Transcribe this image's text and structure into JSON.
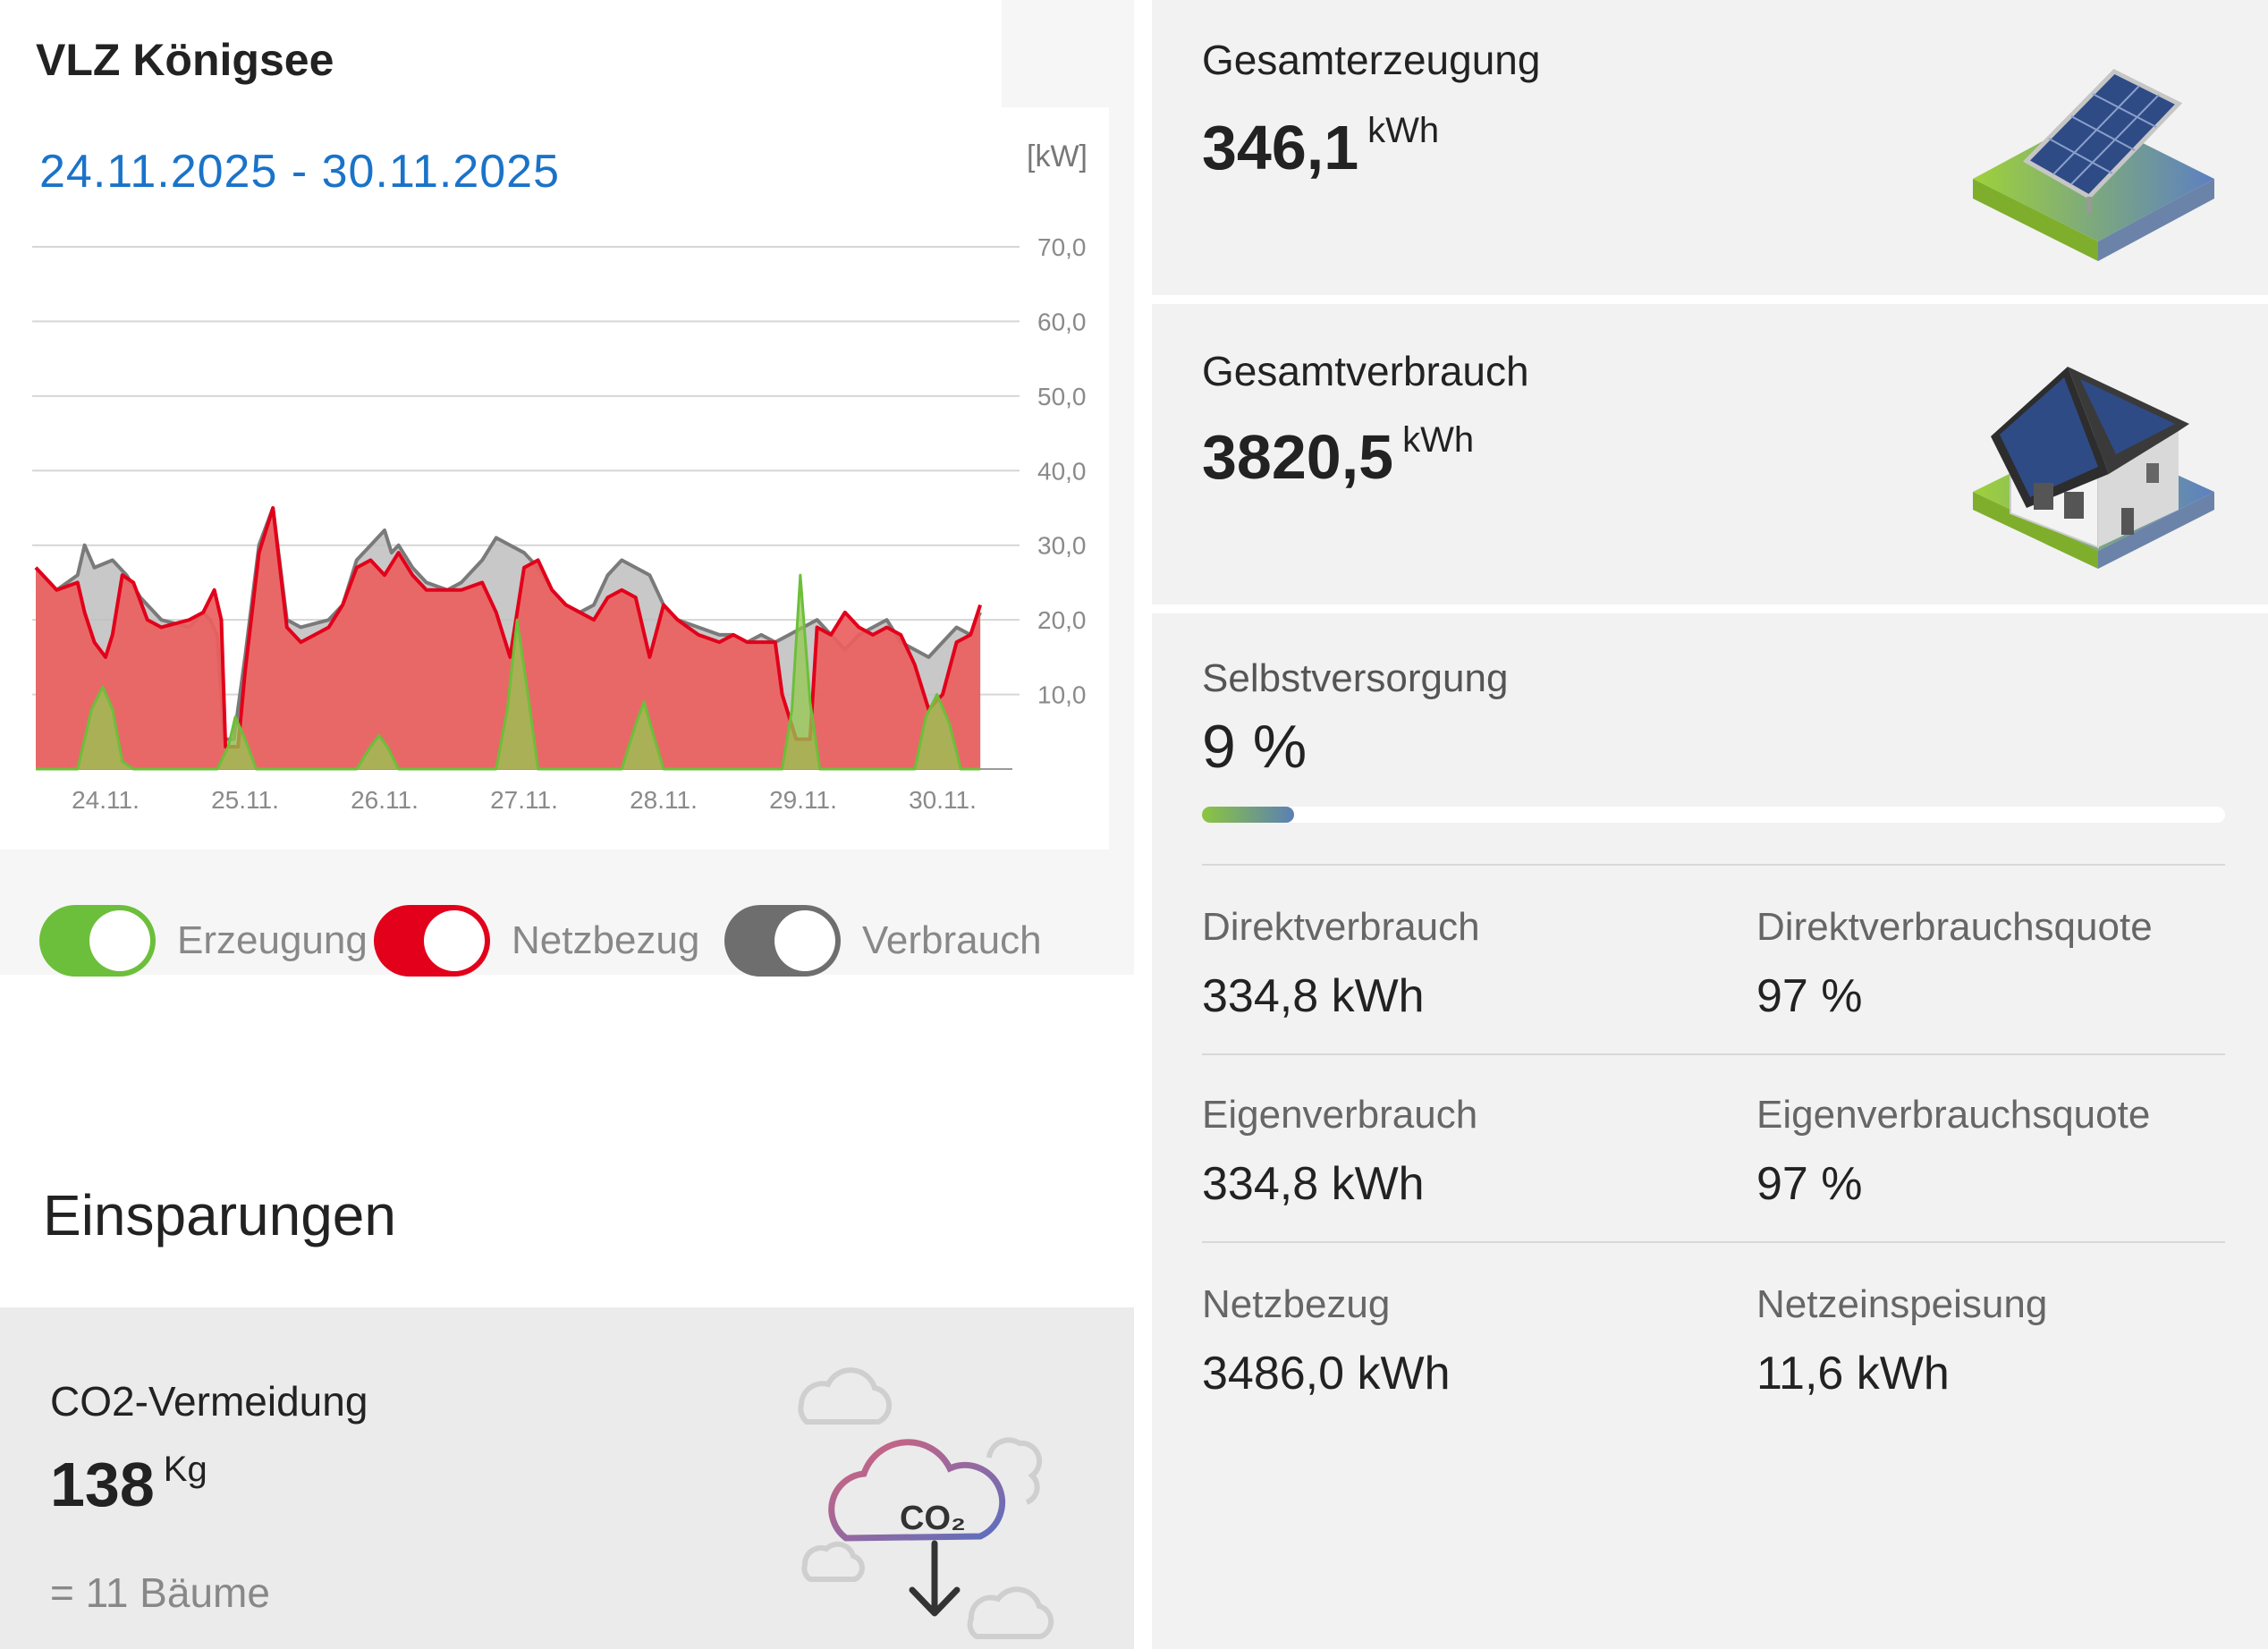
{
  "header": {
    "title": "VLZ Königsee",
    "date_range": "24.11.2025 - 30.11.2025",
    "unit": "[kW]"
  },
  "chart_data": {
    "type": "area",
    "title": "",
    "ylabel": "[kW]",
    "ylim": [
      0,
      70
    ],
    "y_ticks": [
      "70,0",
      "60,0",
      "50,0",
      "40,0",
      "30,0",
      "20,0",
      "10,0"
    ],
    "y_tick_values": [
      70,
      60,
      50,
      40,
      30,
      20,
      10
    ],
    "x_tick_labels": [
      "24.11.",
      "25.11.",
      "26.11.",
      "27.11.",
      "28.11.",
      "29.11.",
      "30.11."
    ],
    "x_range": [
      0,
      7
    ],
    "series": [
      {
        "name": "Verbrauch",
        "color": "#7a7a7a",
        "points": [
          [
            0,
            27
          ],
          [
            0.15,
            24
          ],
          [
            0.3,
            26
          ],
          [
            0.35,
            30
          ],
          [
            0.42,
            27
          ],
          [
            0.55,
            28
          ],
          [
            0.65,
            26
          ],
          [
            0.75,
            23
          ],
          [
            0.9,
            20
          ],
          [
            1.1,
            19
          ],
          [
            1.2,
            21
          ],
          [
            1.25,
            20
          ],
          [
            1.3,
            18
          ],
          [
            1.35,
            4
          ],
          [
            1.42,
            4
          ],
          [
            1.5,
            15
          ],
          [
            1.6,
            30
          ],
          [
            1.7,
            35
          ],
          [
            1.8,
            20
          ],
          [
            1.9,
            19
          ],
          [
            2.1,
            20
          ],
          [
            2.2,
            22
          ],
          [
            2.3,
            28
          ],
          [
            2.4,
            30
          ],
          [
            2.5,
            32
          ],
          [
            2.55,
            29
          ],
          [
            2.6,
            30
          ],
          [
            2.7,
            27
          ],
          [
            2.8,
            25
          ],
          [
            2.95,
            24
          ],
          [
            3.05,
            25
          ],
          [
            3.2,
            28
          ],
          [
            3.3,
            31
          ],
          [
            3.4,
            30
          ],
          [
            3.5,
            29
          ],
          [
            3.6,
            27
          ],
          [
            3.7,
            24
          ],
          [
            3.8,
            22
          ],
          [
            3.9,
            21
          ],
          [
            4.0,
            22
          ],
          [
            4.1,
            26
          ],
          [
            4.2,
            28
          ],
          [
            4.3,
            27
          ],
          [
            4.4,
            26
          ],
          [
            4.5,
            22
          ],
          [
            4.6,
            20
          ],
          [
            4.75,
            19
          ],
          [
            4.9,
            18
          ],
          [
            5.0,
            18
          ],
          [
            5.1,
            17
          ],
          [
            5.2,
            18
          ],
          [
            5.3,
            17
          ],
          [
            5.4,
            18
          ],
          [
            5.5,
            19
          ],
          [
            5.6,
            20
          ],
          [
            5.7,
            18
          ],
          [
            5.8,
            16
          ],
          [
            5.9,
            18
          ],
          [
            6.0,
            19
          ],
          [
            6.1,
            20
          ],
          [
            6.2,
            17
          ],
          [
            6.3,
            16
          ],
          [
            6.4,
            15
          ],
          [
            6.5,
            17
          ],
          [
            6.6,
            19
          ],
          [
            6.7,
            18
          ],
          [
            6.77,
            21
          ]
        ]
      },
      {
        "name": "Netzbezug",
        "color": "#e2001a",
        "points": [
          [
            0,
            27
          ],
          [
            0.15,
            24
          ],
          [
            0.3,
            25
          ],
          [
            0.35,
            21
          ],
          [
            0.42,
            17
          ],
          [
            0.5,
            15
          ],
          [
            0.55,
            18
          ],
          [
            0.62,
            26
          ],
          [
            0.7,
            25
          ],
          [
            0.8,
            20
          ],
          [
            0.9,
            19
          ],
          [
            1.1,
            20
          ],
          [
            1.2,
            21
          ],
          [
            1.28,
            24
          ],
          [
            1.33,
            20
          ],
          [
            1.36,
            3
          ],
          [
            1.45,
            3
          ],
          [
            1.5,
            13
          ],
          [
            1.6,
            29
          ],
          [
            1.7,
            35
          ],
          [
            1.8,
            19
          ],
          [
            1.9,
            17
          ],
          [
            2.1,
            19
          ],
          [
            2.2,
            22
          ],
          [
            2.3,
            27
          ],
          [
            2.4,
            28
          ],
          [
            2.5,
            26
          ],
          [
            2.6,
            29
          ],
          [
            2.7,
            26
          ],
          [
            2.8,
            24
          ],
          [
            2.95,
            24
          ],
          [
            3.05,
            24
          ],
          [
            3.2,
            25
          ],
          [
            3.3,
            21
          ],
          [
            3.4,
            15
          ],
          [
            3.5,
            27
          ],
          [
            3.6,
            28
          ],
          [
            3.7,
            24
          ],
          [
            3.8,
            22
          ],
          [
            3.9,
            21
          ],
          [
            4.0,
            20
          ],
          [
            4.1,
            23
          ],
          [
            4.2,
            24
          ],
          [
            4.3,
            23
          ],
          [
            4.4,
            15
          ],
          [
            4.5,
            22
          ],
          [
            4.6,
            20
          ],
          [
            4.75,
            18
          ],
          [
            4.9,
            17
          ],
          [
            5.0,
            18
          ],
          [
            5.1,
            17
          ],
          [
            5.2,
            17
          ],
          [
            5.3,
            17
          ],
          [
            5.35,
            10
          ],
          [
            5.45,
            4
          ],
          [
            5.55,
            4
          ],
          [
            5.6,
            19
          ],
          [
            5.7,
            18
          ],
          [
            5.8,
            21
          ],
          [
            5.9,
            19
          ],
          [
            6.0,
            18
          ],
          [
            6.1,
            19
          ],
          [
            6.2,
            18
          ],
          [
            6.3,
            14
          ],
          [
            6.4,
            8
          ],
          [
            6.5,
            10
          ],
          [
            6.6,
            17
          ],
          [
            6.7,
            18
          ],
          [
            6.77,
            22
          ]
        ]
      },
      {
        "name": "Erzeugung",
        "color": "#6cbf3a",
        "points": [
          [
            0,
            0
          ],
          [
            0.3,
            0
          ],
          [
            0.4,
            8
          ],
          [
            0.48,
            11
          ],
          [
            0.55,
            8
          ],
          [
            0.62,
            1
          ],
          [
            0.7,
            0
          ],
          [
            1.3,
            0
          ],
          [
            1.38,
            3
          ],
          [
            1.43,
            7
          ],
          [
            1.5,
            4
          ],
          [
            1.58,
            0
          ],
          [
            2.3,
            0
          ],
          [
            2.4,
            3
          ],
          [
            2.46,
            4.5
          ],
          [
            2.52,
            3
          ],
          [
            2.6,
            0
          ],
          [
            3.3,
            0
          ],
          [
            3.38,
            8
          ],
          [
            3.45,
            20
          ],
          [
            3.52,
            11
          ],
          [
            3.6,
            0
          ],
          [
            4.2,
            0
          ],
          [
            4.3,
            6
          ],
          [
            4.36,
            9
          ],
          [
            4.42,
            5
          ],
          [
            4.5,
            0
          ],
          [
            5.35,
            0
          ],
          [
            5.42,
            8
          ],
          [
            5.48,
            26
          ],
          [
            5.55,
            9
          ],
          [
            5.62,
            0
          ],
          [
            6.3,
            0
          ],
          [
            6.38,
            7
          ],
          [
            6.46,
            10
          ],
          [
            6.55,
            6
          ],
          [
            6.63,
            0
          ],
          [
            6.77,
            0
          ]
        ]
      }
    ],
    "legend": "bottom"
  },
  "toggles": [
    {
      "label": "Erzeugung",
      "color": "#6cbf3a",
      "on": true
    },
    {
      "label": "Netzbezug",
      "color": "#e2001a",
      "on": true
    },
    {
      "label": "Verbrauch",
      "color": "#6e6e6e",
      "on": true
    }
  ],
  "savings": {
    "section_title": "Einsparungen",
    "co2_title": "CO2-Vermeidung",
    "co2_value": "138",
    "co2_unit": "Kg",
    "equivalent": "= 11 Bäume",
    "icon_text": "CO₂",
    "icon": "co2-cloud-icon"
  },
  "production": {
    "label": "Gesamterzeugung",
    "value": "346,1",
    "unit": "kWh",
    "icon": "solar-panel-icon"
  },
  "consumption": {
    "label": "Gesamtverbrauch",
    "value": "3820,5",
    "unit": "kWh",
    "icon": "house-icon"
  },
  "self_supply": {
    "label": "Selbstversorgung",
    "value": "9 %",
    "fraction": 0.09
  },
  "stats": {
    "direct_label": "Direktverbrauch",
    "direct_value": "334,8 kWh",
    "direct_rate_label": "Direktverbrauchsquote",
    "direct_rate_value": "97 %",
    "own_label": "Eigenverbrauch",
    "own_value": "334,8 kWh",
    "own_rate_label": "Eigenverbrauchsquote",
    "own_rate_value": "97 %",
    "grid_label": "Netzbezug",
    "grid_value": "3486,0 kWh",
    "feed_label": "Netzeinspeisung",
    "feed_value": "11,6 kWh"
  }
}
